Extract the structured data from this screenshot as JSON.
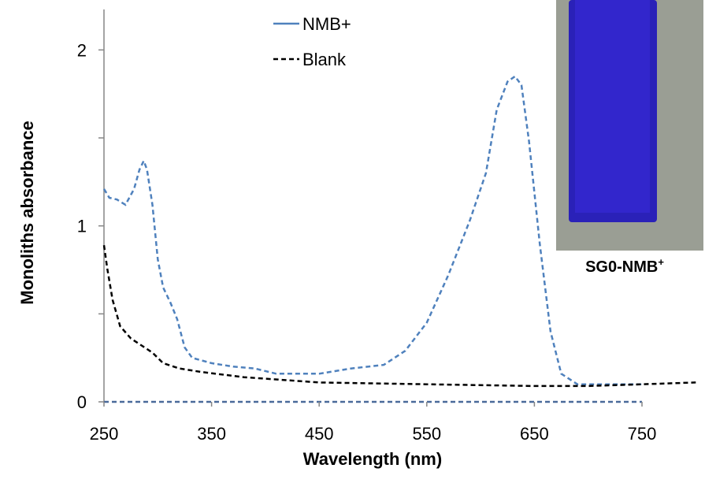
{
  "chart_data": {
    "type": "line",
    "xlabel": "Wavelength (nm)",
    "ylabel": "Monoliths absorbance",
    "xlim": [
      250,
      750
    ],
    "xticks": [
      250,
      350,
      450,
      550,
      650,
      750
    ],
    "ylim": [
      0,
      2.23
    ],
    "yticks": [
      0,
      1,
      2
    ],
    "yminorticks": [
      0.5,
      1.5
    ],
    "series": [
      {
        "name": "NMB+",
        "color": "#4f81bd",
        "dash": true,
        "x": [
          250,
          255,
          262,
          270,
          278,
          283,
          287,
          290,
          295,
          300,
          305,
          312,
          318,
          325,
          332,
          350,
          370,
          390,
          410,
          450,
          480,
          510,
          530,
          550,
          570,
          590,
          605,
          615,
          625,
          632,
          638,
          645,
          655,
          665,
          675,
          690,
          710,
          750
        ],
        "values": [
          1.21,
          1.16,
          1.15,
          1.12,
          1.21,
          1.32,
          1.37,
          1.32,
          1.12,
          0.81,
          0.65,
          0.56,
          0.47,
          0.31,
          0.25,
          0.22,
          0.2,
          0.19,
          0.16,
          0.16,
          0.19,
          0.21,
          0.29,
          0.45,
          0.72,
          1.03,
          1.3,
          1.66,
          1.82,
          1.85,
          1.8,
          1.48,
          0.9,
          0.4,
          0.16,
          0.1,
          0.1,
          0.1
        ]
      },
      {
        "name": "Blank",
        "color": "#000000",
        "dash": true,
        "x": [
          250,
          253,
          258,
          265,
          275,
          285,
          295,
          305,
          320,
          340,
          380,
          450,
          550,
          650,
          700,
          750,
          800
        ],
        "values": [
          0.89,
          0.76,
          0.58,
          0.43,
          0.36,
          0.32,
          0.28,
          0.22,
          0.19,
          0.17,
          0.14,
          0.11,
          0.1,
          0.09,
          0.09,
          0.1,
          0.11
        ]
      }
    ],
    "photo_label": "SG0-NMB",
    "photo_label_sup": "+"
  }
}
